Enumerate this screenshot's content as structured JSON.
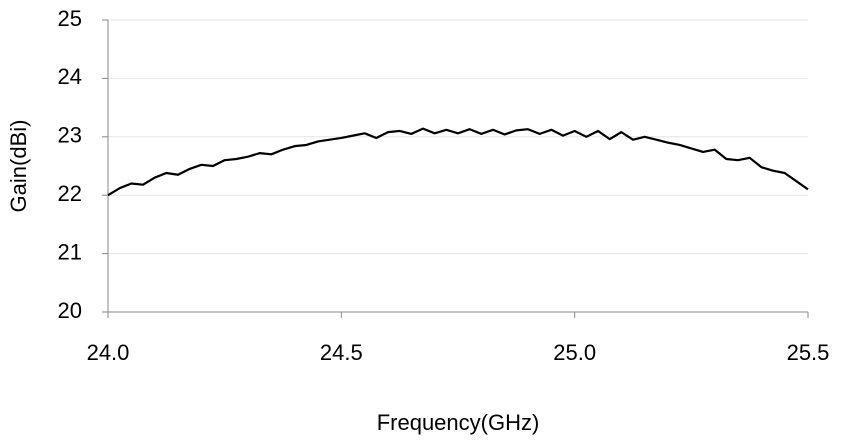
{
  "chart_data": {
    "type": "line",
    "xlabel": "Frequency(GHz)",
    "ylabel": "Gain(dBi)",
    "x": [
      24.0,
      24.025,
      24.05,
      24.075,
      24.1,
      24.125,
      24.15,
      24.175,
      24.2,
      24.225,
      24.25,
      24.275,
      24.3,
      24.325,
      24.35,
      24.375,
      24.4,
      24.425,
      24.45,
      24.475,
      24.5,
      24.525,
      24.55,
      24.575,
      24.6,
      24.625,
      24.65,
      24.675,
      24.7,
      24.725,
      24.75,
      24.775,
      24.8,
      24.825,
      24.85,
      24.875,
      24.9,
      24.925,
      24.95,
      24.975,
      25.0,
      25.025,
      25.05,
      25.075,
      25.1,
      25.125,
      25.15,
      25.175,
      25.2,
      25.225,
      25.25,
      25.275,
      25.3,
      25.325,
      25.35,
      25.375,
      25.4,
      25.425,
      25.45,
      25.475,
      25.5
    ],
    "values": [
      22.0,
      22.12,
      22.2,
      22.18,
      22.3,
      22.38,
      22.35,
      22.45,
      22.52,
      22.5,
      22.6,
      22.62,
      22.66,
      22.72,
      22.7,
      22.78,
      22.84,
      22.86,
      22.92,
      22.95,
      22.98,
      23.02,
      23.06,
      22.98,
      23.08,
      23.1,
      23.05,
      23.14,
      23.06,
      23.12,
      23.06,
      23.13,
      23.05,
      23.12,
      23.04,
      23.11,
      23.13,
      23.05,
      23.12,
      23.02,
      23.1,
      23.0,
      23.1,
      22.96,
      23.08,
      22.95,
      23.0,
      22.95,
      22.9,
      22.86,
      22.8,
      22.74,
      22.78,
      22.62,
      22.6,
      22.64,
      22.48,
      22.42,
      22.38,
      22.24,
      22.1
    ],
    "color": "#000000",
    "xlim": [
      24.0,
      25.5
    ],
    "ylim": [
      20,
      25
    ],
    "xticks": [
      {
        "value": 24.0,
        "label": "24.0"
      },
      24.5,
      {
        "value": 25.0,
        "label": "25.0"
      },
      25.5
    ],
    "yticks": [
      20,
      21,
      22,
      23,
      24,
      25
    ],
    "grid": true
  }
}
